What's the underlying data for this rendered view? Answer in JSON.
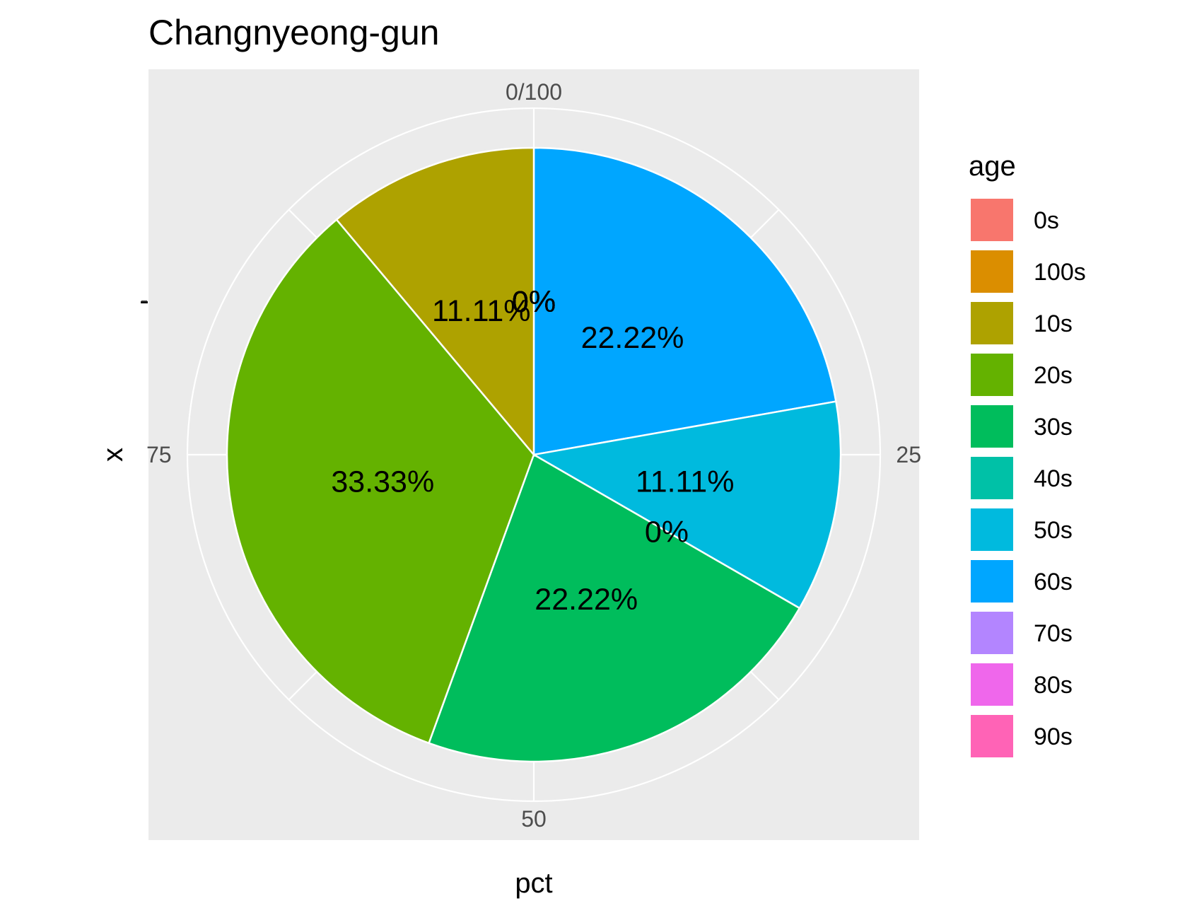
{
  "chart_data": {
    "type": "pie",
    "title": "Changnyeong-gun",
    "xlabel": "pct",
    "ylabel": "x",
    "y_tick_label": "-",
    "theta_ticks": [
      "0/100",
      "25",
      "50",
      "75"
    ],
    "theta_tick_values": [
      0,
      25,
      50,
      75
    ],
    "legend": {
      "title": "age",
      "placement": "right"
    },
    "categories": [
      "0s",
      "100s",
      "10s",
      "20s",
      "30s",
      "40s",
      "50s",
      "60s",
      "70s",
      "80s",
      "90s"
    ],
    "colors": [
      "#F8766D",
      "#DB8E00",
      "#AEA200",
      "#64B200",
      "#00BD5C",
      "#00C1A7",
      "#00BADE",
      "#00A6FF",
      "#B385FF",
      "#EF67EB",
      "#FF63B6"
    ],
    "values": [
      0,
      0,
      11.11,
      33.33,
      22.22,
      0,
      11.11,
      22.22,
      0,
      0,
      0
    ],
    "data_labels": [
      "0%",
      "0%",
      "11.11%",
      "33.33%",
      "22.22%",
      "0%",
      "11.11%",
      "22.22%",
      "0%",
      "0%",
      "0%"
    ],
    "direction": "clockwise",
    "start_angle": "top",
    "stack_order": "reverse",
    "grid": true,
    "panel_background": "#EBEBEB",
    "grid_color": "#FFFFFF",
    "slice_border_color": "#FFFFFF"
  }
}
